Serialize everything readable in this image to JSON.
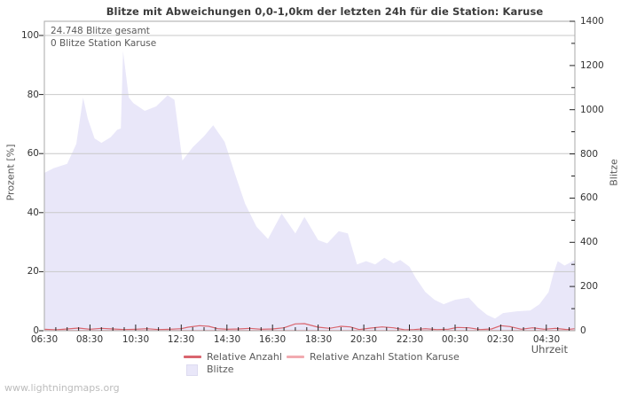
{
  "title": "Blitze mit Abweichungen 0,0-1,0km der letzten 24h für die Station: Karuse",
  "annotation": {
    "line1": "24.748 Blitze gesamt",
    "line2": "0 Blitze Station Karuse"
  },
  "watermark": "www.lightningmaps.org",
  "legend": {
    "relative": "Relative Anzahl",
    "station": "Relative Anzahl Station Karuse",
    "blitze": "Blitze"
  },
  "colors": {
    "area_fill": "#e9e7f9",
    "line_relative": "#d9656e",
    "line_station": "#f2aab0",
    "grid": "#c9c9c9",
    "frame": "#a9a9a9",
    "tick": "#222222"
  },
  "chart_data": {
    "type": "area",
    "title": "Blitze mit Abweichungen 0,0-1,0km der letzten 24h für die Station: Karuse",
    "xlabel": "Uhrzeit",
    "x_axis": {
      "major_tick_labels": [
        "06:30",
        "08:30",
        "10:30",
        "12:30",
        "14:30",
        "16:30",
        "18:30",
        "20:30",
        "22:30",
        "00:30",
        "02:30",
        "04:30"
      ],
      "major_tick_hours": [
        0,
        2,
        4,
        6,
        8,
        10,
        12,
        14,
        16,
        18,
        20,
        22
      ],
      "minor_step_hours": 0.5,
      "range_hours": [
        0,
        23.25
      ]
    },
    "y_left": {
      "label": "Prozent  [%]",
      "range": [
        0,
        100
      ],
      "ticks": [
        0,
        20,
        40,
        60,
        80,
        100
      ],
      "grid_at": [
        20,
        40,
        60,
        80,
        100
      ]
    },
    "y_right": {
      "label": "Blitze",
      "range": [
        0,
        1400
      ],
      "ticks": [
        0,
        200,
        400,
        600,
        800,
        1000,
        1200,
        1400
      ],
      "minor_step": 100
    },
    "annotations": [
      "24.748 Blitze gesamt",
      "0 Blitze Station Karuse"
    ],
    "legend_position": "bottom-center",
    "series": [
      {
        "name": "Blitze",
        "type": "area",
        "axis": "right",
        "color": "#e9e7f9",
        "points": [
          [
            0,
            714
          ],
          [
            0.4,
            735
          ],
          [
            1.0,
            755
          ],
          [
            1.4,
            845
          ],
          [
            1.7,
            1055
          ],
          [
            1.9,
            960
          ],
          [
            2.2,
            870
          ],
          [
            2.5,
            850
          ],
          [
            2.9,
            875
          ],
          [
            3.2,
            910
          ],
          [
            3.35,
            915
          ],
          [
            3.45,
            1265
          ],
          [
            3.7,
            1055
          ],
          [
            3.9,
            1030
          ],
          [
            4.4,
            995
          ],
          [
            4.9,
            1015
          ],
          [
            5.4,
            1065
          ],
          [
            5.7,
            1045
          ],
          [
            6.05,
            770
          ],
          [
            6.5,
            830
          ],
          [
            7.0,
            880
          ],
          [
            7.4,
            930
          ],
          [
            7.9,
            855
          ],
          [
            8.4,
            695
          ],
          [
            8.8,
            575
          ],
          [
            9.3,
            470
          ],
          [
            9.8,
            415
          ],
          [
            10.4,
            530
          ],
          [
            11.0,
            440
          ],
          [
            11.4,
            515
          ],
          [
            12.0,
            410
          ],
          [
            12.4,
            395
          ],
          [
            12.9,
            450
          ],
          [
            13.3,
            440
          ],
          [
            13.7,
            300
          ],
          [
            14.1,
            315
          ],
          [
            14.5,
            300
          ],
          [
            14.9,
            330
          ],
          [
            15.3,
            305
          ],
          [
            15.6,
            320
          ],
          [
            16.0,
            290
          ],
          [
            16.3,
            235
          ],
          [
            16.7,
            175
          ],
          [
            17.1,
            140
          ],
          [
            17.5,
            120
          ],
          [
            18.0,
            140
          ],
          [
            18.6,
            150
          ],
          [
            19.0,
            105
          ],
          [
            19.4,
            72
          ],
          [
            19.75,
            55
          ],
          [
            20.1,
            80
          ],
          [
            20.7,
            88
          ],
          [
            21.3,
            92
          ],
          [
            21.7,
            120
          ],
          [
            22.1,
            175
          ],
          [
            22.3,
            255
          ],
          [
            22.5,
            315
          ],
          [
            22.8,
            295
          ],
          [
            23.25,
            320
          ]
        ]
      },
      {
        "name": "Relative Anzahl",
        "type": "line",
        "axis": "left",
        "color": "#d9656e",
        "points": [
          [
            0,
            0.5
          ],
          [
            0.5,
            0.3
          ],
          [
            1.0,
            0.6
          ],
          [
            1.5,
            0.9
          ],
          [
            2.0,
            0.5
          ],
          [
            2.5,
            0.8
          ],
          [
            3.0,
            0.6
          ],
          [
            3.5,
            0.4
          ],
          [
            4.0,
            0.5
          ],
          [
            4.5,
            0.7
          ],
          [
            5.0,
            0.4
          ],
          [
            5.5,
            0.5
          ],
          [
            6.0,
            0.7
          ],
          [
            6.3,
            1.2
          ],
          [
            6.8,
            1.7
          ],
          [
            7.2,
            1.5
          ],
          [
            7.6,
            0.7
          ],
          [
            8.0,
            0.5
          ],
          [
            8.5,
            0.6
          ],
          [
            9.0,
            0.8
          ],
          [
            9.5,
            0.5
          ],
          [
            10.0,
            0.6
          ],
          [
            10.5,
            1.0
          ],
          [
            11.0,
            2.3
          ],
          [
            11.4,
            2.4
          ],
          [
            12.0,
            1.2
          ],
          [
            12.5,
            0.8
          ],
          [
            13.0,
            1.5
          ],
          [
            13.4,
            1.3
          ],
          [
            13.8,
            0.4
          ],
          [
            14.3,
            0.9
          ],
          [
            14.8,
            1.3
          ],
          [
            15.3,
            1.0
          ],
          [
            15.8,
            0.3
          ],
          [
            16.2,
            0.4
          ],
          [
            16.7,
            0.7
          ],
          [
            17.2,
            0.4
          ],
          [
            17.7,
            0.5
          ],
          [
            18.1,
            1.1
          ],
          [
            18.6,
            1.0
          ],
          [
            19.1,
            0.4
          ],
          [
            19.6,
            0.6
          ],
          [
            20.0,
            1.7
          ],
          [
            20.4,
            1.4
          ],
          [
            20.9,
            0.5
          ],
          [
            21.4,
            1.0
          ],
          [
            21.9,
            0.5
          ],
          [
            22.4,
            0.8
          ],
          [
            22.9,
            0.4
          ],
          [
            23.25,
            0.7
          ]
        ]
      },
      {
        "name": "Relative Anzahl Station Karuse",
        "type": "line",
        "axis": "left",
        "color": "#f2aab0",
        "points": [
          [
            0,
            0.1
          ],
          [
            23.25,
            0.1
          ]
        ]
      }
    ]
  }
}
